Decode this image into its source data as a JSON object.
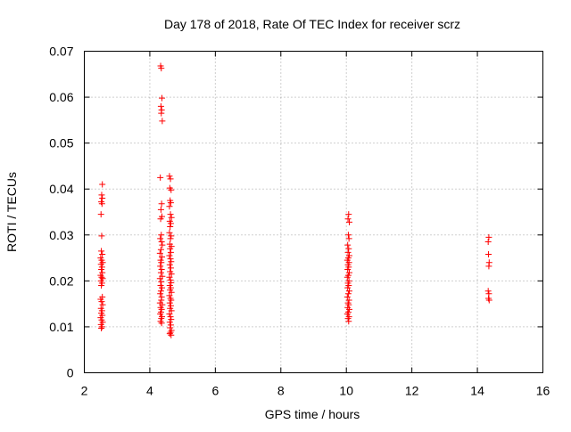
{
  "chart_data": {
    "type": "scatter",
    "title": "Day 178 of 2018, Rate Of TEC Index for receiver scrz",
    "xlabel": "GPS time / hours",
    "ylabel": "ROTI / TECUs",
    "xlim": [
      2,
      16
    ],
    "ylim": [
      0,
      0.07
    ],
    "grid": true,
    "marker": "plus",
    "color": "#ff0000",
    "x_ticks": [
      {
        "value": 2,
        "label": "2"
      },
      {
        "value": 4,
        "label": "4"
      },
      {
        "value": 6,
        "label": "6"
      },
      {
        "value": 8,
        "label": "8"
      },
      {
        "value": 10,
        "label": "10"
      },
      {
        "value": 12,
        "label": "12"
      },
      {
        "value": 14,
        "label": "14"
      },
      {
        "value": 16,
        "label": "16"
      }
    ],
    "y_ticks": [
      {
        "value": 0,
        "label": "0"
      },
      {
        "value": 0.01,
        "label": "0.01"
      },
      {
        "value": 0.02,
        "label": "0.02"
      },
      {
        "value": 0.03,
        "label": "0.03"
      },
      {
        "value": 0.04,
        "label": "0.04"
      },
      {
        "value": 0.05,
        "label": "0.05"
      },
      {
        "value": 0.06,
        "label": "0.06"
      },
      {
        "value": 0.07,
        "label": "0.07"
      }
    ],
    "series": [
      {
        "name": "ROTI",
        "points": [
          [
            2.55,
            0.041
          ],
          [
            2.53,
            0.0387
          ],
          [
            2.55,
            0.038
          ],
          [
            2.52,
            0.0372
          ],
          [
            2.54,
            0.0368
          ],
          [
            2.51,
            0.0345
          ],
          [
            2.53,
            0.0298
          ],
          [
            2.52,
            0.0265
          ],
          [
            2.55,
            0.0258
          ],
          [
            2.5,
            0.025
          ],
          [
            2.53,
            0.0245
          ],
          [
            2.56,
            0.024
          ],
          [
            2.51,
            0.0236
          ],
          [
            2.54,
            0.023
          ],
          [
            2.52,
            0.0225
          ],
          [
            2.55,
            0.0218
          ],
          [
            2.5,
            0.0212
          ],
          [
            2.53,
            0.0208
          ],
          [
            2.56,
            0.0205
          ],
          [
            2.51,
            0.02
          ],
          [
            2.54,
            0.0195
          ],
          [
            2.52,
            0.019
          ],
          [
            2.55,
            0.0165
          ],
          [
            2.5,
            0.016
          ],
          [
            2.53,
            0.0155
          ],
          [
            2.56,
            0.0148
          ],
          [
            2.51,
            0.014
          ],
          [
            2.54,
            0.0135
          ],
          [
            2.52,
            0.013
          ],
          [
            2.55,
            0.0125
          ],
          [
            2.5,
            0.012
          ],
          [
            2.53,
            0.0115
          ],
          [
            2.56,
            0.011
          ],
          [
            2.51,
            0.0105
          ],
          [
            2.54,
            0.01
          ],
          [
            2.52,
            0.0097
          ],
          [
            4.33,
            0.0668
          ],
          [
            4.35,
            0.0663
          ],
          [
            4.37,
            0.0598
          ],
          [
            4.34,
            0.058
          ],
          [
            4.36,
            0.0572
          ],
          [
            4.35,
            0.0565
          ],
          [
            4.38,
            0.0548
          ],
          [
            4.32,
            0.0425
          ],
          [
            4.36,
            0.0368
          ],
          [
            4.34,
            0.0355
          ],
          [
            4.37,
            0.034
          ],
          [
            4.33,
            0.0335
          ],
          [
            4.35,
            0.03
          ],
          [
            4.32,
            0.0292
          ],
          [
            4.36,
            0.0285
          ],
          [
            4.38,
            0.0278
          ],
          [
            4.34,
            0.0268
          ],
          [
            4.31,
            0.026
          ],
          [
            4.37,
            0.0252
          ],
          [
            4.33,
            0.0245
          ],
          [
            4.35,
            0.024
          ],
          [
            4.32,
            0.0232
          ],
          [
            4.36,
            0.0225
          ],
          [
            4.34,
            0.0218
          ],
          [
            4.38,
            0.021
          ],
          [
            4.31,
            0.0205
          ],
          [
            4.35,
            0.0198
          ],
          [
            4.33,
            0.019
          ],
          [
            4.37,
            0.0185
          ],
          [
            4.34,
            0.0178
          ],
          [
            4.32,
            0.0172
          ],
          [
            4.36,
            0.0165
          ],
          [
            4.35,
            0.0158
          ],
          [
            4.31,
            0.0152
          ],
          [
            4.38,
            0.0148
          ],
          [
            4.33,
            0.0142
          ],
          [
            4.36,
            0.0138
          ],
          [
            4.34,
            0.0132
          ],
          [
            4.32,
            0.0128
          ],
          [
            4.37,
            0.0122
          ],
          [
            4.35,
            0.0118
          ],
          [
            4.33,
            0.0112
          ],
          [
            4.36,
            0.0108
          ],
          [
            4.6,
            0.0428
          ],
          [
            4.63,
            0.0422
          ],
          [
            4.61,
            0.0402
          ],
          [
            4.65,
            0.0398
          ],
          [
            4.62,
            0.0375
          ],
          [
            4.64,
            0.037
          ],
          [
            4.6,
            0.0362
          ],
          [
            4.63,
            0.0345
          ],
          [
            4.66,
            0.0338
          ],
          [
            4.61,
            0.033
          ],
          [
            4.64,
            0.0325
          ],
          [
            4.62,
            0.0318
          ],
          [
            4.6,
            0.0305
          ],
          [
            4.65,
            0.0298
          ],
          [
            4.63,
            0.0292
          ],
          [
            4.61,
            0.028
          ],
          [
            4.66,
            0.0275
          ],
          [
            4.62,
            0.027
          ],
          [
            4.64,
            0.0262
          ],
          [
            4.6,
            0.0255
          ],
          [
            4.63,
            0.0248
          ],
          [
            4.65,
            0.0242
          ],
          [
            4.61,
            0.0235
          ],
          [
            4.64,
            0.0228
          ],
          [
            4.62,
            0.022
          ],
          [
            4.66,
            0.0215
          ],
          [
            4.6,
            0.0208
          ],
          [
            4.63,
            0.0202
          ],
          [
            4.65,
            0.0196
          ],
          [
            4.61,
            0.019
          ],
          [
            4.64,
            0.0185
          ],
          [
            4.62,
            0.018
          ],
          [
            4.66,
            0.0175
          ],
          [
            4.6,
            0.0168
          ],
          [
            4.63,
            0.0162
          ],
          [
            4.65,
            0.0158
          ],
          [
            4.61,
            0.0152
          ],
          [
            4.64,
            0.0146
          ],
          [
            4.62,
            0.014
          ],
          [
            4.66,
            0.0135
          ],
          [
            4.6,
            0.0128
          ],
          [
            4.63,
            0.0122
          ],
          [
            4.65,
            0.0116
          ],
          [
            4.61,
            0.011
          ],
          [
            4.64,
            0.0104
          ],
          [
            4.62,
            0.0098
          ],
          [
            4.66,
            0.0092
          ],
          [
            4.63,
            0.0088
          ],
          [
            4.61,
            0.0085
          ],
          [
            4.65,
            0.0082
          ],
          [
            10.07,
            0.0345
          ],
          [
            10.05,
            0.0335
          ],
          [
            10.09,
            0.0328
          ],
          [
            10.06,
            0.03
          ],
          [
            10.08,
            0.0292
          ],
          [
            10.04,
            0.0278
          ],
          [
            10.07,
            0.027
          ],
          [
            10.05,
            0.0262
          ],
          [
            10.09,
            0.0255
          ],
          [
            10.06,
            0.025
          ],
          [
            10.03,
            0.0245
          ],
          [
            10.08,
            0.024
          ],
          [
            10.05,
            0.0235
          ],
          [
            10.07,
            0.023
          ],
          [
            10.04,
            0.0225
          ],
          [
            10.09,
            0.0218
          ],
          [
            10.06,
            0.0212
          ],
          [
            10.03,
            0.0208
          ],
          [
            10.08,
            0.02
          ],
          [
            10.05,
            0.0195
          ],
          [
            10.07,
            0.019
          ],
          [
            10.04,
            0.0185
          ],
          [
            10.09,
            0.0178
          ],
          [
            10.06,
            0.0172
          ],
          [
            10.03,
            0.0165
          ],
          [
            10.08,
            0.0158
          ],
          [
            10.05,
            0.0152
          ],
          [
            10.07,
            0.0148
          ],
          [
            10.04,
            0.0142
          ],
          [
            10.09,
            0.0138
          ],
          [
            10.06,
            0.0132
          ],
          [
            10.03,
            0.0128
          ],
          [
            10.08,
            0.0122
          ],
          [
            10.05,
            0.0118
          ],
          [
            10.07,
            0.0112
          ],
          [
            14.35,
            0.0295
          ],
          [
            14.33,
            0.0285
          ],
          [
            14.34,
            0.0258
          ],
          [
            14.36,
            0.024
          ],
          [
            14.35,
            0.0232
          ],
          [
            14.33,
            0.0178
          ],
          [
            14.35,
            0.0172
          ],
          [
            14.34,
            0.0162
          ],
          [
            14.36,
            0.0158
          ]
        ]
      }
    ]
  }
}
